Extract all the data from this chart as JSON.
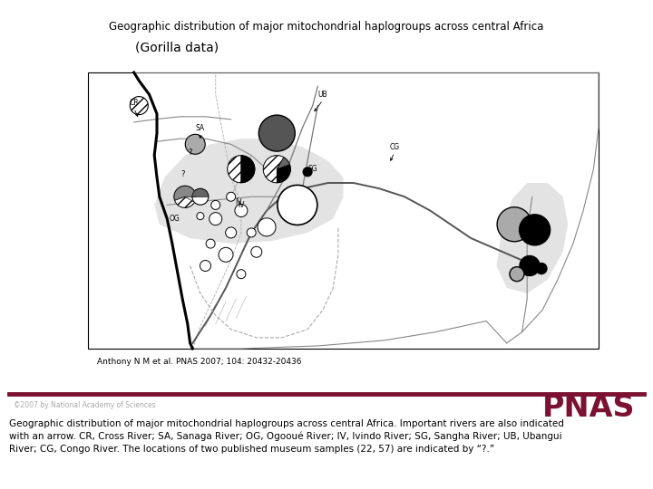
{
  "title": "Geographic distribution of major mitochondrial haplogroups across central Africa",
  "subtitle": "(Gorilla data)",
  "citation": "Anthony N M et al. PNAS 2007; 104: 20432-20436",
  "copyright": "©2007 by National Academy of Sciences",
  "pnas_text": "PNAS",
  "pnas_color": "#7b1232",
  "caption_line1": "Geographic distribution of major mitochondrial haplogroups across central Africa. Important rivers are also indicated",
  "caption_line2": "with an arrow. CR, Cross River; SA, Sanaga River; OG, Ogooué River; IV, Ivindo River; SG, Sangha River; UB, Ubangui",
  "caption_line3": "River; CG, Congo River. The locations of two published museum samples (22, 57) are indicated by “?.”",
  "background_color": "#ffffff",
  "title_fontsize": 8.5,
  "subtitle_fontsize": 10,
  "caption_fontsize": 7.5,
  "citation_fontsize": 6.5,
  "divider_color": "#7b1232"
}
